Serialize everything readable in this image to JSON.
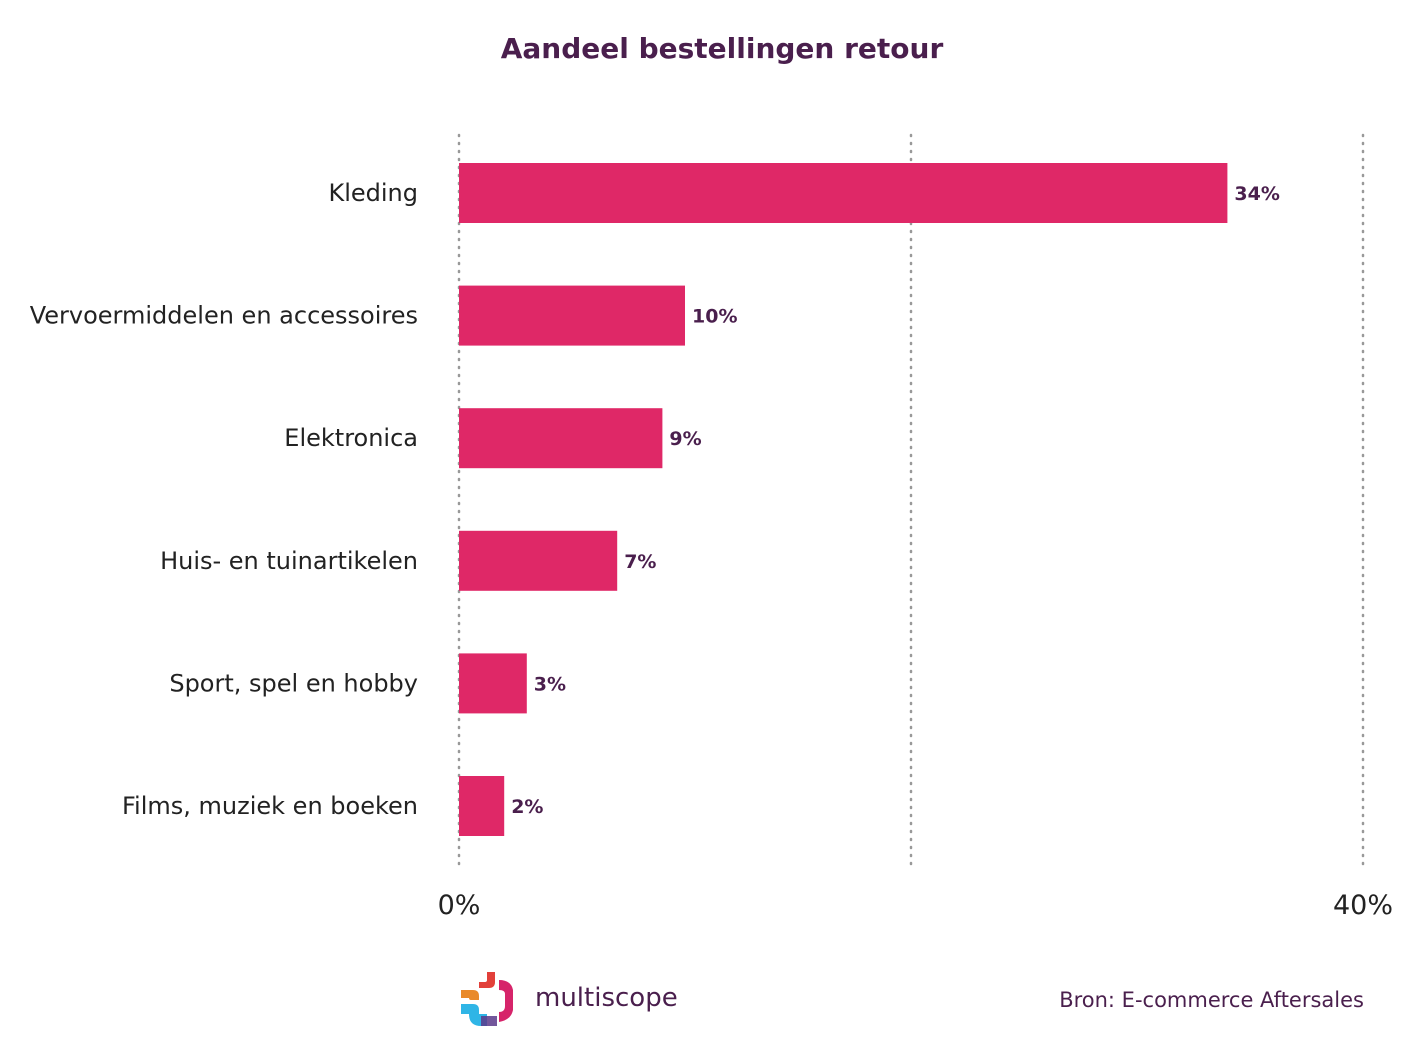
{
  "colors": {
    "bar": "#df2867",
    "title": "#4a1f4d",
    "value_label": "#4a1f4d",
    "grid": "#999999",
    "text": "#222222"
  },
  "logo": {
    "text": "multiscope",
    "icon": "multiscope-logo-icon"
  },
  "source": "Bron: E-commerce Aftersales",
  "chart_data": {
    "type": "bar",
    "orientation": "horizontal",
    "title": "Aandeel bestellingen retour",
    "categories": [
      "Kleding",
      "Vervoermiddelen en accessoires",
      "Elektronica",
      "Huis- en tuinartikelen",
      "Sport, spel en hobby",
      "Films, muziek en boeken"
    ],
    "values": [
      34,
      10,
      9,
      7,
      3,
      2
    ],
    "value_labels": [
      "34%",
      "10%",
      "9%",
      "7%",
      "3%",
      "2%"
    ],
    "xlim": [
      0,
      40
    ],
    "x_ticks": [
      0,
      20,
      40
    ],
    "x_tick_labels": [
      "0%",
      "",
      "40%"
    ],
    "grid": true,
    "grid_style": "dotted"
  }
}
